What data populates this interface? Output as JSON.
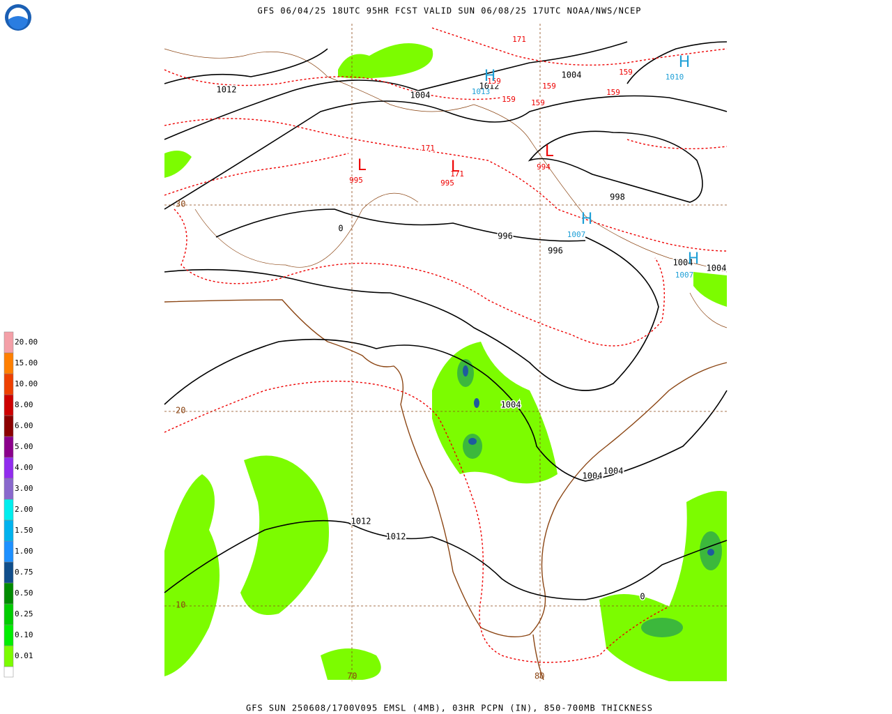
{
  "header": "GFS 06/04/25 18UTC 95HR FCST VALID SUN 06/08/25 17UTC NOAA/NWS/NCEP",
  "footer": "GFS SUN 250608/1700V095 EMSL (4MB), 03HR PCPN (IN), 850-700MB THICKNESS",
  "legend": {
    "labels": [
      "0.01",
      "0.10",
      "0.25",
      "0.50",
      "0.75",
      "1.00",
      "1.50",
      "2.00",
      "3.00",
      "4.00",
      "5.00",
      "6.00",
      "8.00",
      "10.00",
      "15.00",
      "20.00"
    ],
    "colors": [
      "#ffffff",
      "#7cfc00",
      "#00ee00",
      "#00cd00",
      "#008b00",
      "#104e8b",
      "#1e90ff",
      "#00b2ee",
      "#00eeee",
      "#8968cd",
      "#912cee",
      "#8b008b",
      "#8b0000",
      "#cd0000",
      "#ee4000",
      "#ff7f00",
      "#f4a0a8"
    ]
  },
  "latitude_labels": [
    "30",
    "20",
    "10"
  ],
  "longitude_labels": [
    "70",
    "80"
  ],
  "pressure_labels": [
    "1012",
    "1004",
    "1012",
    "1004",
    "998",
    "996",
    "996",
    "1004",
    "1004",
    "1004",
    "1004",
    "1004",
    "1012",
    "1012",
    "0",
    "0"
  ],
  "thickness_labels": [
    "171",
    "159",
    "159",
    "159",
    "159",
    "159",
    "159",
    "171",
    "171"
  ],
  "highs": [
    {
      "symbol": "H",
      "value": "1010"
    },
    {
      "symbol": "H",
      "value": "1013"
    },
    {
      "symbol": "H",
      "value": "1007"
    },
    {
      "symbol": "H",
      "value": "1007"
    }
  ],
  "lows": [
    {
      "symbol": "L",
      "value": "995"
    },
    {
      "symbol": "L",
      "value": "995"
    },
    {
      "symbol": "L",
      "value": "994"
    }
  ]
}
